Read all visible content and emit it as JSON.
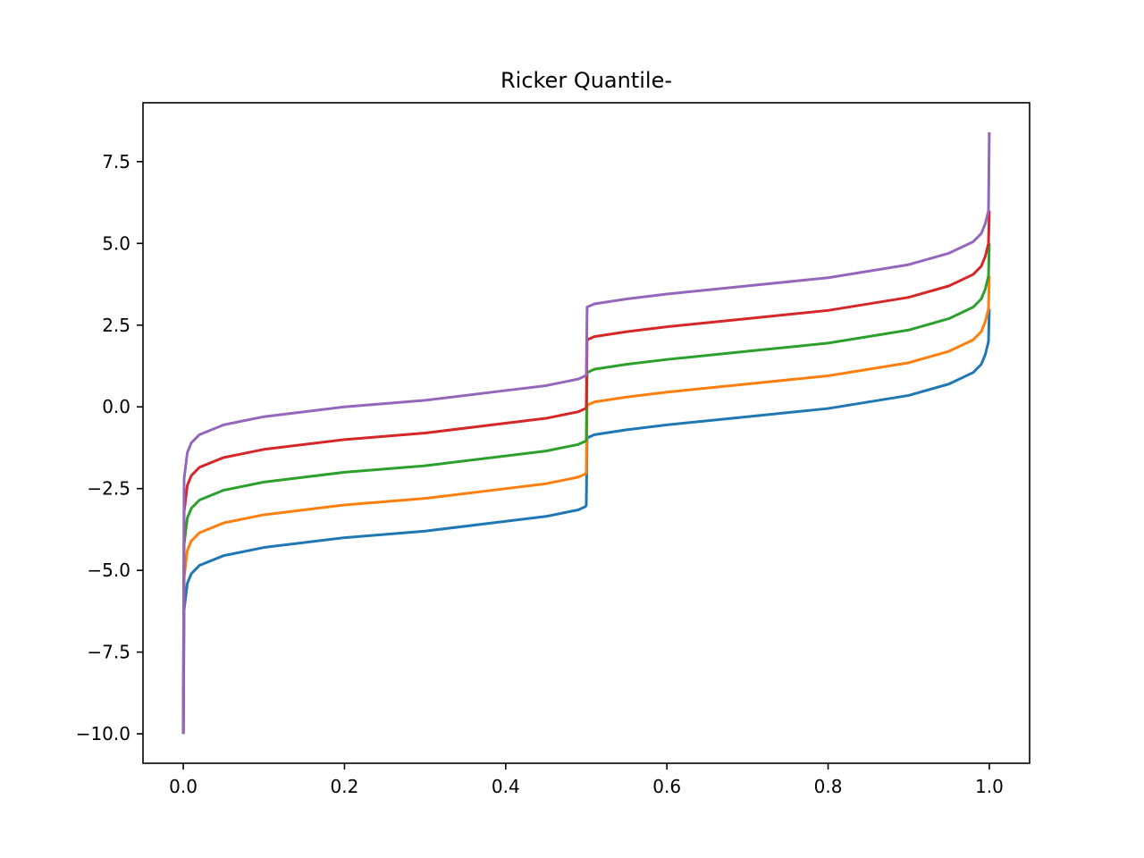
{
  "chart_data": {
    "type": "line",
    "title": "Ricker Quantile-",
    "xlabel": "",
    "ylabel": "",
    "xlim": [
      -0.05,
      1.05
    ],
    "ylim": [
      -10.9,
      9.3
    ],
    "grid": false,
    "x_ticks": [
      0.0,
      0.2,
      0.4,
      0.6,
      0.8,
      1.0
    ],
    "x_tick_labels": [
      "0.0",
      "0.2",
      "0.4",
      "0.6",
      "0.8",
      "1.0"
    ],
    "y_ticks": [
      7.5,
      5.0,
      2.5,
      0.0,
      -2.5,
      -5.0,
      -7.5,
      -10.0
    ],
    "y_tick_labels": [
      "7.5",
      "5.0",
      "2.5",
      "0.0",
      "−2.5",
      "−5.0",
      "−7.5",
      "−10.0"
    ],
    "x": [
      0.0,
      0.001,
      0.005,
      0.01,
      0.02,
      0.05,
      0.1,
      0.2,
      0.3,
      0.4,
      0.45,
      0.49,
      0.499,
      0.5,
      0.501,
      0.51,
      0.55,
      0.6,
      0.7,
      0.8,
      0.9,
      0.95,
      0.98,
      0.99,
      0.995,
      0.999,
      1.0
    ],
    "series": [
      {
        "color": "#1f77b4",
        "values": [
          -10.0,
          -6.2,
          -5.4,
          -5.1,
          -4.85,
          -4.55,
          -4.3,
          -4.0,
          -3.8,
          -3.5,
          -3.35,
          -3.15,
          -3.05,
          -3.0,
          -0.95,
          -0.85,
          -0.7,
          -0.55,
          -0.3,
          -0.05,
          0.35,
          0.7,
          1.05,
          1.3,
          1.6,
          2.0,
          3.0
        ]
      },
      {
        "color": "#ff7f0e",
        "values": [
          -10.0,
          -5.2,
          -4.4,
          -4.1,
          -3.85,
          -3.55,
          -3.3,
          -3.0,
          -2.8,
          -2.5,
          -2.35,
          -2.15,
          -2.05,
          -2.0,
          0.05,
          0.15,
          0.3,
          0.45,
          0.7,
          0.95,
          1.35,
          1.7,
          2.05,
          2.3,
          2.6,
          3.0,
          4.0
        ]
      },
      {
        "color": "#2ca02c",
        "values": [
          -10.0,
          -4.2,
          -3.4,
          -3.1,
          -2.85,
          -2.55,
          -2.3,
          -2.0,
          -1.8,
          -1.5,
          -1.35,
          -1.15,
          -1.05,
          -1.0,
          1.05,
          1.15,
          1.3,
          1.45,
          1.7,
          1.95,
          2.35,
          2.7,
          3.05,
          3.3,
          3.6,
          4.0,
          5.0
        ]
      },
      {
        "color": "#d62728",
        "values": [
          -10.0,
          -3.2,
          -2.4,
          -2.1,
          -1.85,
          -1.55,
          -1.3,
          -1.0,
          -0.8,
          -0.5,
          -0.35,
          -0.15,
          -0.05,
          0.0,
          2.05,
          2.15,
          2.3,
          2.45,
          2.7,
          2.95,
          3.35,
          3.7,
          4.05,
          4.3,
          4.6,
          5.0,
          6.0
        ]
      },
      {
        "color": "#9467bd",
        "values": [
          -10.0,
          -2.2,
          -1.4,
          -1.1,
          -0.85,
          -0.55,
          -0.3,
          0.0,
          0.2,
          0.5,
          0.65,
          0.85,
          0.95,
          1.0,
          3.05,
          3.15,
          3.3,
          3.45,
          3.7,
          3.95,
          4.35,
          4.7,
          5.05,
          5.3,
          5.6,
          6.0,
          8.4
        ]
      }
    ]
  }
}
